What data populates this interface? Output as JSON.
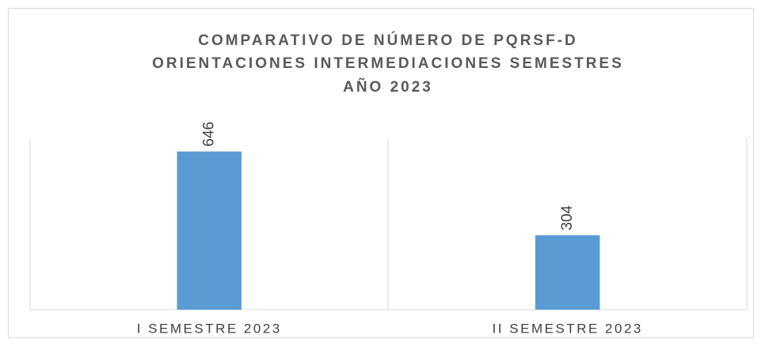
{
  "chart_data": {
    "type": "bar",
    "title": [
      "COMPARATIVO DE NÚMERO DE PQRSF-D",
      "ORIENTACIONES INTERMEDIACIONES  SEMESTRES",
      "AÑO 2023"
    ],
    "categories": [
      "I SEMESTRE 2023",
      "II SEMESTRE 2023"
    ],
    "values": [
      646,
      304
    ],
    "color": "#5b9bd5",
    "ylim": [
      0,
      700
    ]
  }
}
